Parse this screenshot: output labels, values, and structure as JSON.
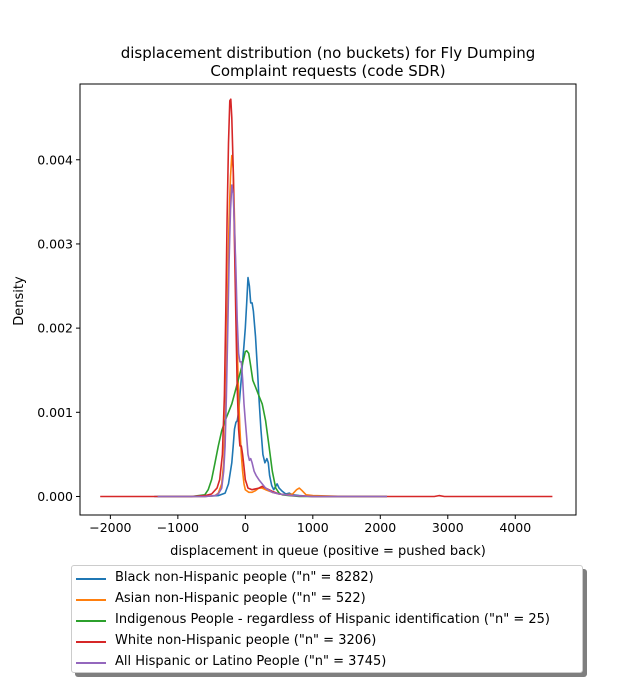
{
  "chart_data": {
    "type": "line",
    "title": "displacement distribution (no buckets)  for Fly Dumping\nComplaint requests (code SDR)",
    "xlabel": "displacement in queue (positive = pushed back)",
    "ylabel": "Density",
    "xlim": [
      -2450,
      4900
    ],
    "ylim": [
      -0.00022,
      0.0049
    ],
    "xticks": [
      -2000,
      -1000,
      0,
      1000,
      2000,
      3000,
      4000
    ],
    "xtick_labels": [
      "−2000",
      "−1000",
      "0",
      "1000",
      "2000",
      "3000",
      "4000"
    ],
    "yticks": [
      0.0,
      0.001,
      0.002,
      0.003,
      0.004
    ],
    "ytick_labels": [
      "0.000",
      "0.001",
      "0.002",
      "0.003",
      "0.004"
    ],
    "grid": false,
    "legend_position": "below",
    "series": [
      {
        "name": "Black non-Hispanic people (\"n\" = 8282)",
        "color": "#1f77b4",
        "points": [
          [
            -1350,
            0
          ],
          [
            -600,
            0
          ],
          [
            -400,
            1e-05
          ],
          [
            -300,
            4e-05
          ],
          [
            -250,
            0.00015
          ],
          [
            -200,
            0.0004
          ],
          [
            -180,
            0.0006
          ],
          [
            -160,
            0.0008
          ],
          [
            -140,
            0.00088
          ],
          [
            -120,
            0.0009
          ],
          [
            -100,
            0.001
          ],
          [
            -80,
            0.0012
          ],
          [
            -60,
            0.0014
          ],
          [
            -40,
            0.0016
          ],
          [
            -20,
            0.0018
          ],
          [
            0,
            0.002
          ],
          [
            20,
            0.0023
          ],
          [
            40,
            0.0026
          ],
          [
            60,
            0.0025
          ],
          [
            80,
            0.0023
          ],
          [
            100,
            0.0023
          ],
          [
            120,
            0.0022
          ],
          [
            150,
            0.0019
          ],
          [
            180,
            0.0015
          ],
          [
            200,
            0.0012
          ],
          [
            230,
            0.0008
          ],
          [
            260,
            0.0005
          ],
          [
            290,
            0.0004
          ],
          [
            320,
            0.00045
          ],
          [
            340,
            0.0004
          ],
          [
            360,
            0.00025
          ],
          [
            390,
            0.00013
          ],
          [
            420,
            8e-05
          ],
          [
            450,
            0.00012
          ],
          [
            470,
            0.00015
          ],
          [
            500,
            0.0001
          ],
          [
            550,
            6e-05
          ],
          [
            600,
            3e-05
          ],
          [
            650,
            4e-05
          ],
          [
            700,
            2e-05
          ],
          [
            800,
            1e-05
          ],
          [
            1000,
            0
          ],
          [
            1500,
            0
          ],
          [
            2100,
            0
          ]
        ]
      },
      {
        "name": "Asian non-Hispanic people (\"n\" = 522)",
        "color": "#ff7f0e",
        "points": [
          [
            -1300,
            0
          ],
          [
            -600,
            0
          ],
          [
            -450,
            1e-05
          ],
          [
            -400,
            4e-05
          ],
          [
            -350,
            0.00015
          ],
          [
            -320,
            0.0004
          ],
          [
            -300,
            0.0008
          ],
          [
            -280,
            0.0015
          ],
          [
            -260,
            0.0025
          ],
          [
            -240,
            0.0033
          ],
          [
            -220,
            0.0038
          ],
          [
            -200,
            0.00405
          ],
          [
            -180,
            0.0039
          ],
          [
            -160,
            0.0033
          ],
          [
            -140,
            0.0025
          ],
          [
            -120,
            0.0018
          ],
          [
            -100,
            0.0012
          ],
          [
            -80,
            0.0008
          ],
          [
            -60,
            0.0005
          ],
          [
            -40,
            0.0003
          ],
          [
            -20,
            0.00015
          ],
          [
            0,
            8e-05
          ],
          [
            50,
            5e-05
          ],
          [
            100,
            5e-05
          ],
          [
            150,
            7e-05
          ],
          [
            200,
            0.0001
          ],
          [
            250,
            0.0001
          ],
          [
            300,
            8e-05
          ],
          [
            400,
            5e-05
          ],
          [
            500,
            3e-05
          ],
          [
            600,
            2e-05
          ],
          [
            700,
            3e-05
          ],
          [
            760,
            8e-05
          ],
          [
            800,
            0.0001
          ],
          [
            840,
            7e-05
          ],
          [
            900,
            2e-05
          ],
          [
            1000,
            1e-05
          ],
          [
            1500,
            0
          ],
          [
            2100,
            0
          ]
        ]
      },
      {
        "name": "Indigenous People - regardless of Hispanic identification (\"n\" = 25)",
        "color": "#2ca02c",
        "points": [
          [
            -1300,
            0
          ],
          [
            -800,
            0
          ],
          [
            -600,
            2e-05
          ],
          [
            -550,
            8e-05
          ],
          [
            -500,
            0.0002
          ],
          [
            -450,
            0.0004
          ],
          [
            -400,
            0.0006
          ],
          [
            -350,
            0.00078
          ],
          [
            -300,
            0.0009
          ],
          [
            -250,
            0.001
          ],
          [
            -200,
            0.0011
          ],
          [
            -150,
            0.00125
          ],
          [
            -100,
            0.0014
          ],
          [
            -50,
            0.00155
          ],
          [
            0,
            0.00172
          ],
          [
            20,
            0.00173
          ],
          [
            50,
            0.0017
          ],
          [
            80,
            0.00155
          ],
          [
            110,
            0.00138
          ],
          [
            150,
            0.0013
          ],
          [
            200,
            0.0012
          ],
          [
            250,
            0.0011
          ],
          [
            300,
            0.0009
          ],
          [
            350,
            0.0006
          ],
          [
            400,
            0.0003
          ],
          [
            450,
            0.0001
          ],
          [
            500,
            4e-05
          ],
          [
            550,
            2e-05
          ],
          [
            650,
            1e-05
          ],
          [
            800,
            0
          ],
          [
            1300,
            0
          ],
          [
            2100,
            0
          ]
        ]
      },
      {
        "name": "White non-Hispanic people (\"n\" = 3206)",
        "color": "#d62728",
        "points": [
          [
            -2150,
            0
          ],
          [
            -1500,
            0
          ],
          [
            -800,
            0
          ],
          [
            -600,
            1e-05
          ],
          [
            -500,
            3e-05
          ],
          [
            -420,
            0.0001
          ],
          [
            -380,
            0.0002
          ],
          [
            -340,
            0.0005
          ],
          [
            -310,
            0.0012
          ],
          [
            -290,
            0.0022
          ],
          [
            -270,
            0.0033
          ],
          [
            -250,
            0.0042
          ],
          [
            -230,
            0.0047
          ],
          [
            -215,
            0.00472
          ],
          [
            -200,
            0.0045
          ],
          [
            -180,
            0.0039
          ],
          [
            -160,
            0.003
          ],
          [
            -140,
            0.0021
          ],
          [
            -120,
            0.0013
          ],
          [
            -100,
            0.0008
          ],
          [
            -80,
            0.0006
          ],
          [
            -60,
            0.0006
          ],
          [
            -40,
            0.0005
          ],
          [
            -20,
            0.00035
          ],
          [
            0,
            0.0002
          ],
          [
            40,
            0.0001
          ],
          [
            100,
            8e-05
          ],
          [
            200,
            0.0001
          ],
          [
            250,
            0.00012
          ],
          [
            300,
            0.0001
          ],
          [
            400,
            6e-05
          ],
          [
            500,
            3e-05
          ],
          [
            700,
            1e-05
          ],
          [
            1000,
            0
          ],
          [
            2000,
            0
          ],
          [
            2800,
            0
          ],
          [
            2870,
            1e-05
          ],
          [
            2950,
            0
          ],
          [
            3500,
            0
          ],
          [
            4550,
            0
          ]
        ]
      },
      {
        "name": "All Hispanic or Latino People (\"n\" = 3745)",
        "color": "#9467bd",
        "points": [
          [
            -1300,
            0
          ],
          [
            -600,
            0
          ],
          [
            -450,
            1e-05
          ],
          [
            -400,
            3e-05
          ],
          [
            -350,
            0.0001
          ],
          [
            -320,
            0.0003
          ],
          [
            -300,
            0.0006
          ],
          [
            -280,
            0.0012
          ],
          [
            -260,
            0.002
          ],
          [
            -240,
            0.0028
          ],
          [
            -220,
            0.0034
          ],
          [
            -200,
            0.0037
          ],
          [
            -180,
            0.0036
          ],
          [
            -160,
            0.0032
          ],
          [
            -140,
            0.0027
          ],
          [
            -120,
            0.0021
          ],
          [
            -100,
            0.0017
          ],
          [
            -80,
            0.0016
          ],
          [
            -60,
            0.0016
          ],
          [
            -40,
            0.0014
          ],
          [
            -20,
            0.0011
          ],
          [
            0,
            0.0009
          ],
          [
            20,
            0.0007
          ],
          [
            40,
            0.0005
          ],
          [
            60,
            0.00043
          ],
          [
            80,
            0.00045
          ],
          [
            100,
            0.0004
          ],
          [
            130,
            0.0003
          ],
          [
            160,
            0.00025
          ],
          [
            200,
            0.0002
          ],
          [
            250,
            0.00015
          ],
          [
            300,
            0.0001
          ],
          [
            400,
            5e-05
          ],
          [
            500,
            3e-05
          ],
          [
            700,
            1e-05
          ],
          [
            1000,
            0
          ],
          [
            1500,
            0
          ],
          [
            2100,
            0
          ]
        ]
      }
    ]
  }
}
